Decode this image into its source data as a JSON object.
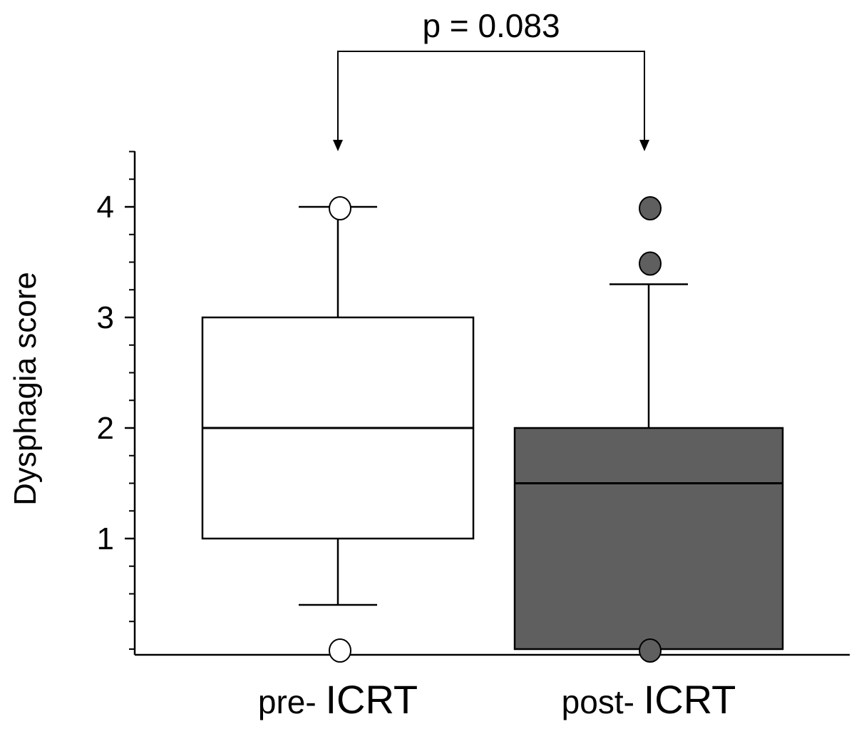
{
  "chart_data": {
    "type": "box",
    "title": "",
    "ylabel": "Dysphagia score",
    "xlabel": "",
    "ylim": [
      -0.05,
      4.5
    ],
    "yticks_major": [
      1,
      2,
      3,
      4
    ],
    "ytick_labels": [
      "1",
      "2",
      "3",
      "4"
    ],
    "yticks_minor_step": 0.25,
    "grid": false,
    "legend": "none",
    "groups": [
      {
        "label_prefix": "pre-",
        "label_main": "ICRT",
        "fill": "#ffffff",
        "outlier_fill": "#ffffff",
        "q1": 1,
        "median": 2,
        "q3": 3,
        "whisker_low": 0.4,
        "whisker_high": 4,
        "outliers": [
          0,
          4
        ]
      },
      {
        "label_prefix": "post-",
        "label_main": "ICRT",
        "fill": "#5f5f5f",
        "outlier_fill": "#5f5f5f",
        "q1": 0,
        "median": 1.5,
        "q3": 2,
        "whisker_low": 0,
        "whisker_high": 3.3,
        "outliers": [
          0,
          3.5,
          4
        ]
      }
    ],
    "annotation": {
      "text": "p = 0.083",
      "from_group": 0,
      "to_group": 1
    }
  }
}
